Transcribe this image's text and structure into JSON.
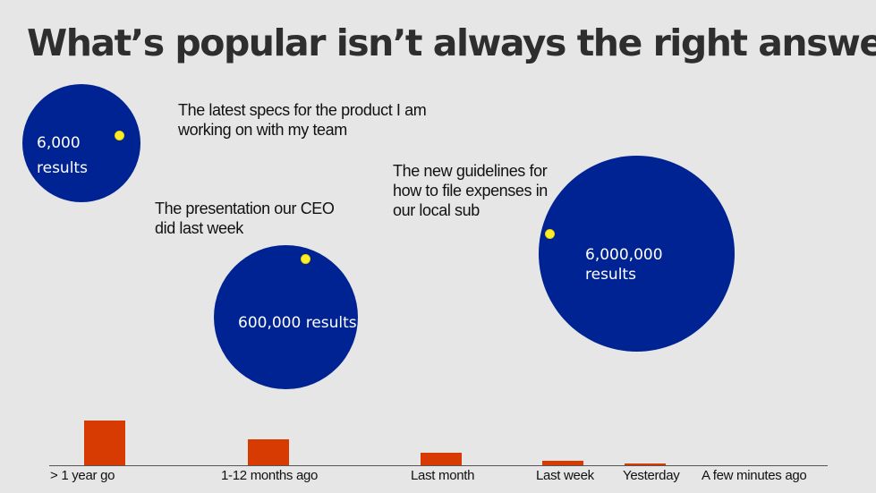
{
  "title": "What’s popular isn’t always the right answer",
  "colors": {
    "background": "#e6e6e6",
    "bubble": "#002394",
    "dot": "#ffef2b",
    "bar": "#d83b01"
  },
  "bubbles": [
    {
      "label": "6,000\nresults"
    },
    {
      "label": "600,000 results"
    },
    {
      "label": "6,000,000\nresults"
    }
  ],
  "captions": [
    "The latest specs for the product I am working on with my team",
    "The presentation our CEO did last week",
    "The new guidelines for how to file expenses in our local sub"
  ],
  "chart_data": {
    "type": "bar",
    "categories": [
      "> 1 year go",
      "1-12 months ago",
      "Last month",
      "Last week",
      "Yesterday",
      "A few minutes ago"
    ],
    "values": [
      50,
      29,
      14,
      5,
      2,
      0
    ],
    "ylim": [
      0,
      55
    ],
    "grid": false
  }
}
